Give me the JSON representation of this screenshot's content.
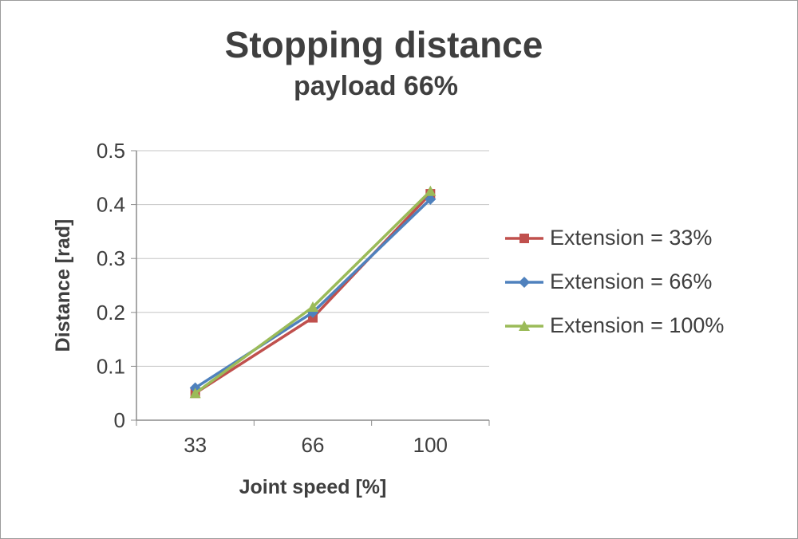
{
  "window": {
    "background": "#ffffff",
    "border_color": "#9b9b9b"
  },
  "chart_data": {
    "type": "line",
    "title": "Stopping distance",
    "subtitle": "payload 66%",
    "xlabel": "Joint speed [%]",
    "ylabel": "Distance [rad]",
    "categories": [
      "33",
      "66",
      "100"
    ],
    "ylim": [
      0,
      0.5
    ],
    "ytick_step": 0.1,
    "yticks": [
      "0",
      "0.1",
      "0.2",
      "0.3",
      "0.4",
      "0.5"
    ],
    "grid": true,
    "legend_position": "right",
    "colors": {
      "gridline": "#c6c6c6",
      "axis": "#8c8c8c",
      "text": "#3f3f3f"
    },
    "series": [
      {
        "name": "Extension = 33%",
        "color": "#C0504D",
        "marker": "square",
        "values": [
          0.05,
          0.19,
          0.42
        ]
      },
      {
        "name": "Extension = 66%",
        "color": "#4F81BD",
        "marker": "diamond",
        "values": [
          0.06,
          0.2,
          0.41
        ]
      },
      {
        "name": "Extension = 100%",
        "color": "#9BBB59",
        "marker": "triangle",
        "values": [
          0.05,
          0.21,
          0.425
        ]
      }
    ]
  }
}
